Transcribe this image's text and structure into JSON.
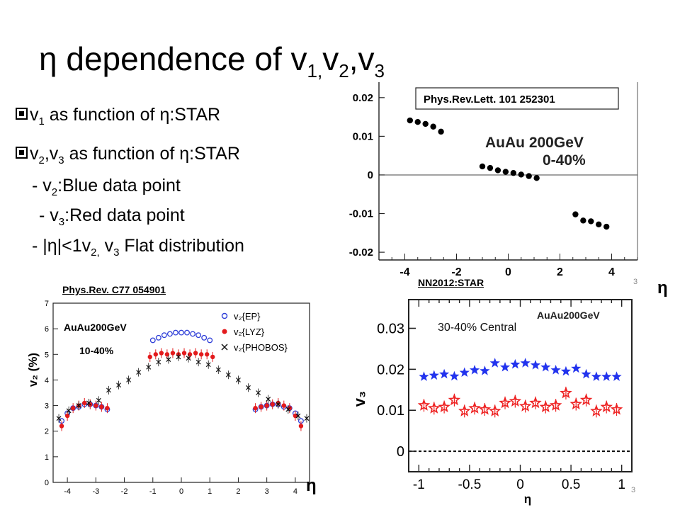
{
  "slide": {
    "title_main": "η dependence of v",
    "title_sub1": "1,",
    "title_v": "v",
    "title_sub2": "2",
    "title_comma": ",v",
    "title_sub3": "3",
    "page_number": "3"
  },
  "bullets": {
    "b1_pre": "v",
    "b1_sub": "1",
    "b1_post": " as function of η:STAR",
    "b2_pre": "v",
    "b2_sub1": "2",
    "b2_mid": ",v",
    "b2_sub2": "3",
    "b2_post": " as function of η:STAR",
    "s1_pre": "- v",
    "s1_sub": "2",
    "s1_post": ":Blue data point",
    "s2_pre": "- v",
    "s2_sub": "3",
    "s2_post": ":Red data point",
    "s3_pre": "- |η|<1v",
    "s3_sub1": "2,",
    "s3_mid": " v",
    "s3_sub2": "3",
    "s3_post": " Flat distribution"
  },
  "chart_data": [
    {
      "type": "scatter",
      "reference": "Phys.Rev.Lett. 101 252301",
      "annotation_line1": "AuAu 200GeV",
      "annotation_line2": "0-40%",
      "xlabel": "η",
      "ylabel": "",
      "xlim": [
        -5,
        5
      ],
      "ylim": [
        -0.022,
        0.024
      ],
      "yticks": [
        "0.02",
        "0.01",
        "0",
        "-0.01",
        "-0.02"
      ],
      "ytick_values": [
        0.02,
        0.01,
        0,
        -0.01,
        -0.02
      ],
      "xticks": [
        "-4",
        "-2",
        "0",
        "2",
        "4"
      ],
      "xtick_values": [
        -4,
        -2,
        0,
        2,
        4
      ],
      "series": [
        {
          "color": "#000000",
          "x": [
            -3.8,
            -3.5,
            -3.2,
            -2.9,
            -2.6,
            -1.0,
            -0.7,
            -0.4,
            -0.1,
            0.2,
            0.5,
            0.8,
            1.1,
            2.6,
            2.9,
            3.2,
            3.5,
            3.8
          ],
          "y": [
            0.0141,
            0.0137,
            0.0132,
            0.0125,
            0.0112,
            0.0022,
            0.0018,
            0.0012,
            0.0008,
            0.0005,
            0.0001,
            -0.0003,
            -0.0008,
            -0.0102,
            -0.0118,
            -0.012,
            -0.0128,
            -0.0134
          ]
        }
      ]
    },
    {
      "type": "scatter",
      "reference": "Phys.Rev. C77 054901",
      "annotation_line1": "AuAu200GeV",
      "annotation_line2": "10-40%",
      "xlabel": "η",
      "ylabel": "v₂ (%)",
      "xlim": [
        -4.5,
        4.5
      ],
      "ylim": [
        0,
        7
      ],
      "yticks": [
        "0",
        "1",
        "2",
        "3",
        "4",
        "5",
        "6",
        "7"
      ],
      "xticks": [
        "-4",
        "-3",
        "-2",
        "-1",
        "0",
        "1",
        "2",
        "3",
        "4"
      ],
      "legend": [
        "v₂{EP}",
        "v₂{LYZ}",
        "v₂{PHOBOS}"
      ],
      "legend_position": "top-right",
      "series": [
        {
          "name": "v₂{EP}",
          "color": "#2f3fd8",
          "marker": "open-circle",
          "x": [
            -4.2,
            -4.0,
            -3.8,
            -3.6,
            -3.4,
            -3.2,
            -3.0,
            -2.8,
            -2.6,
            -1.0,
            -0.8,
            -0.6,
            -0.4,
            -0.2,
            0.0,
            0.2,
            0.4,
            0.6,
            0.8,
            1.0,
            2.6,
            2.8,
            3.0,
            3.2,
            3.4,
            3.6,
            3.8,
            4.0,
            4.2
          ],
          "y": [
            2.4,
            2.7,
            2.9,
            2.95,
            3.05,
            3.05,
            3.0,
            2.95,
            2.85,
            5.55,
            5.65,
            5.75,
            5.8,
            5.85,
            5.85,
            5.85,
            5.8,
            5.75,
            5.65,
            5.55,
            2.85,
            2.95,
            3.0,
            3.05,
            3.05,
            2.95,
            2.9,
            2.7,
            2.4
          ]
        },
        {
          "name": "v₂{LYZ}",
          "color": "#e31a1c",
          "marker": "filled-circle",
          "x": [
            -4.2,
            -4.0,
            -3.8,
            -3.6,
            -3.4,
            -3.2,
            -3.0,
            -2.8,
            -2.6,
            -1.1,
            -0.9,
            -0.7,
            -0.5,
            -0.3,
            -0.1,
            0.1,
            0.3,
            0.5,
            0.7,
            0.9,
            1.1,
            2.6,
            2.8,
            3.0,
            3.2,
            3.4,
            3.6,
            3.8,
            4.0,
            4.2
          ],
          "y": [
            2.2,
            2.6,
            2.9,
            3.0,
            3.1,
            3.05,
            3.0,
            2.95,
            2.9,
            4.9,
            5.0,
            5.05,
            5.0,
            5.05,
            5.0,
            5.05,
            5.0,
            5.05,
            5.0,
            5.0,
            4.9,
            2.9,
            2.95,
            3.0,
            3.05,
            3.1,
            3.0,
            2.9,
            2.6,
            2.2
          ]
        },
        {
          "name": "v₂{PHOBOS}",
          "color": "#111111",
          "marker": "cross",
          "x": [
            -4.3,
            -3.95,
            -3.6,
            -3.25,
            -2.9,
            -2.55,
            -2.2,
            -1.85,
            -1.5,
            -1.15,
            -0.8,
            -0.45,
            -0.1,
            0.25,
            0.6,
            0.95,
            1.3,
            1.65,
            2.0,
            2.35,
            2.7,
            3.05,
            3.4,
            3.75,
            4.1,
            4.4
          ],
          "y": [
            2.5,
            2.8,
            3.0,
            3.1,
            3.2,
            3.6,
            3.8,
            4.0,
            4.3,
            4.5,
            4.7,
            4.8,
            4.9,
            4.85,
            4.7,
            4.6,
            4.4,
            4.2,
            4.0,
            3.7,
            3.5,
            3.25,
            3.05,
            2.85,
            2.6,
            2.5
          ]
        }
      ]
    },
    {
      "type": "scatter",
      "reference": "NN2012:STAR",
      "annotation": "30-40% Central",
      "energy": "AuAu200GeV",
      "xlabel": "η",
      "ylabel": "v₃",
      "xlim": [
        -1.1,
        1.1
      ],
      "ylim": [
        -0.005,
        0.037
      ],
      "yticks": [
        "0",
        "0.01",
        "0.02",
        "0.03"
      ],
      "ytick_values": [
        0,
        0.01,
        0.02,
        0.03
      ],
      "xticks": [
        "-1",
        "-0.5",
        "0",
        "0.5",
        "1"
      ],
      "xtick_values": [
        -1,
        -0.5,
        0,
        0.5,
        1
      ],
      "series": [
        {
          "color": "#2233ee",
          "marker": "filled-star",
          "x": [
            -0.95,
            -0.85,
            -0.75,
            -0.65,
            -0.55,
            -0.45,
            -0.35,
            -0.25,
            -0.15,
            -0.05,
            0.05,
            0.15,
            0.25,
            0.35,
            0.45,
            0.55,
            0.65,
            0.75,
            0.85,
            0.95
          ],
          "y": [
            0.0182,
            0.0185,
            0.0188,
            0.0183,
            0.0192,
            0.0198,
            0.0196,
            0.0215,
            0.0205,
            0.0212,
            0.0215,
            0.021,
            0.0205,
            0.0198,
            0.0195,
            0.0202,
            0.0188,
            0.0182,
            0.0182,
            0.0182
          ]
        },
        {
          "color": "#ee2222",
          "marker": "open-star",
          "x": [
            -0.95,
            -0.85,
            -0.75,
            -0.65,
            -0.55,
            -0.45,
            -0.35,
            -0.25,
            -0.15,
            -0.05,
            0.05,
            0.15,
            0.25,
            0.35,
            0.45,
            0.55,
            0.65,
            0.75,
            0.85,
            0.95
          ],
          "y": [
            0.0112,
            0.0105,
            0.0108,
            0.0125,
            0.0098,
            0.0105,
            0.0102,
            0.0098,
            0.0118,
            0.0122,
            0.011,
            0.0118,
            0.0108,
            0.0112,
            0.0142,
            0.0115,
            0.0125,
            0.0098,
            0.0108,
            0.0102
          ]
        }
      ]
    }
  ]
}
